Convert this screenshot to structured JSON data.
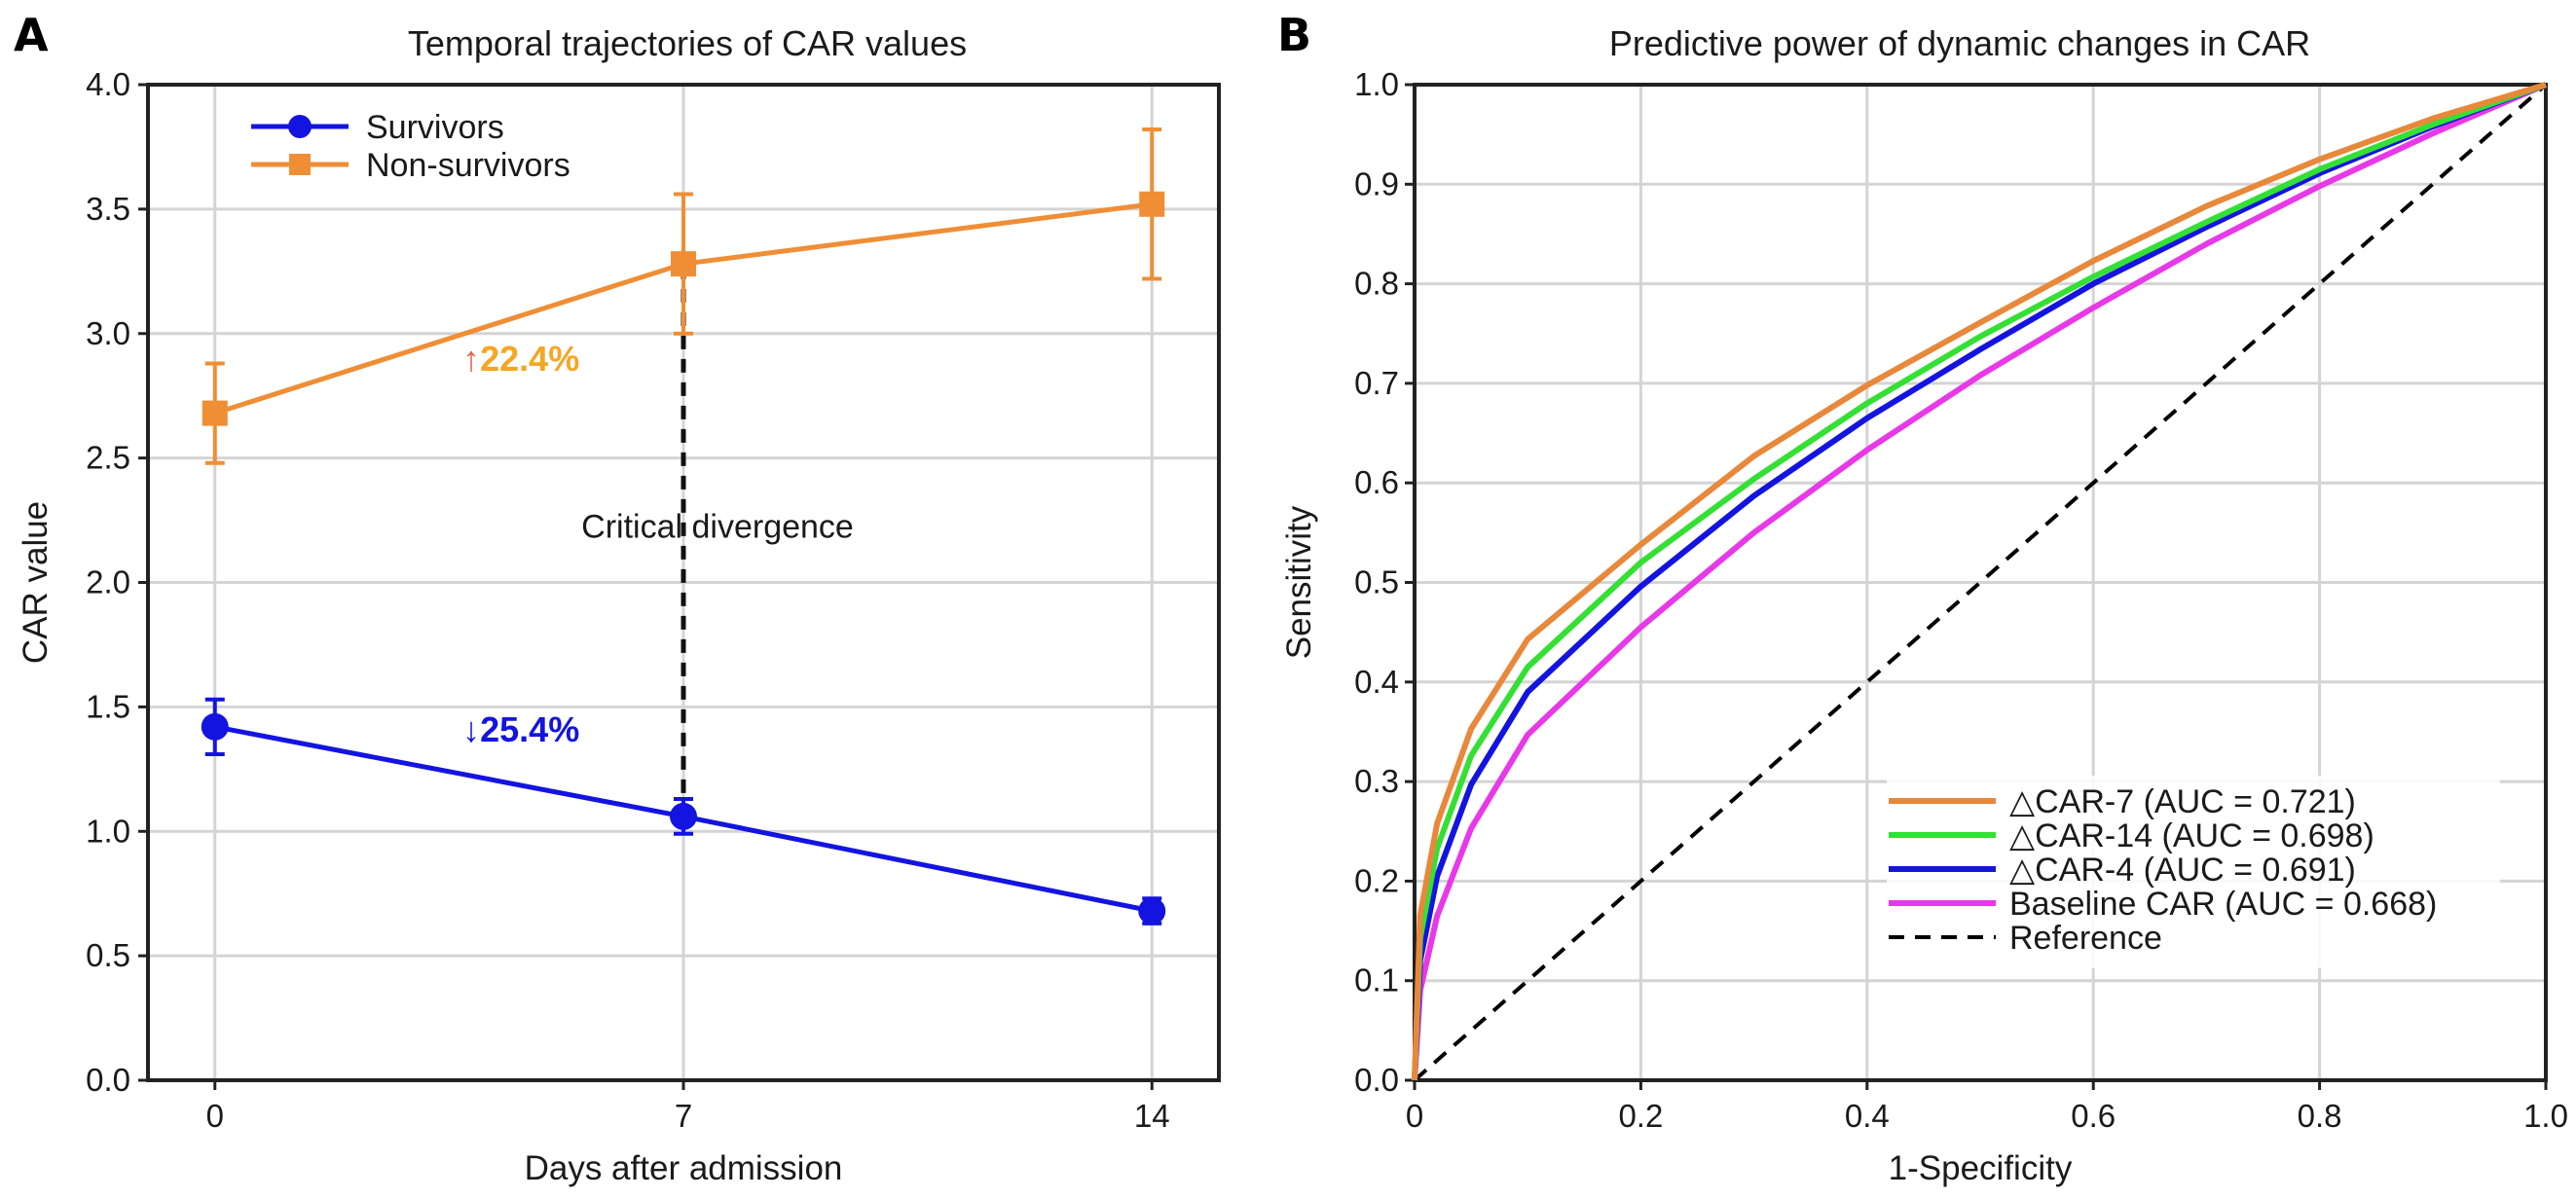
{
  "chart_data": [
    {
      "panel": "A",
      "type": "line",
      "title": "Temporal trajectories of CAR values",
      "xlabel": "Days after admission",
      "ylabel": "CAR value",
      "x": [
        0,
        7,
        14
      ],
      "xticks": [
        "0",
        "7",
        "14"
      ],
      "xlim": [
        -1,
        15
      ],
      "ylim": [
        0,
        4
      ],
      "yticks": [
        "0.0",
        "0.5",
        "1.0",
        "1.5",
        "2.0",
        "2.5",
        "3.0",
        "3.5",
        "4.0"
      ],
      "grid": true,
      "legend_position": "top-left",
      "series": [
        {
          "name": "Survivors",
          "color": "#1414e0",
          "marker": "circle",
          "values": [
            1.42,
            1.06,
            0.68
          ],
          "error": [
            0.11,
            0.07,
            0.05
          ]
        },
        {
          "name": "Non-survivors",
          "color": "#ef8e35",
          "marker": "square",
          "values": [
            2.68,
            3.28,
            3.52
          ],
          "error": [
            0.2,
            0.28,
            0.3
          ]
        }
      ],
      "annotations": [
        {
          "text": "Critical divergence",
          "x": 7,
          "y": 2.18
        },
        {
          "arrow": "↑",
          "text": "22.4%",
          "x": 3.7,
          "y": 2.85,
          "arrow_color": "#e8624d",
          "color": "#f5a623"
        },
        {
          "arrow": "↓",
          "text": "25.4%",
          "x": 3.7,
          "y": 1.36,
          "arrow_color": "#1414e0",
          "color": "#1414e0"
        }
      ],
      "divergence_line": {
        "x": 7,
        "y_from": 1.06,
        "y_to": 3.28
      }
    },
    {
      "panel": "B",
      "type": "line",
      "title": "Predictive power of dynamic changes in CAR",
      "xlabel": "1-Specificity",
      "ylabel": "Sensitivity",
      "xlim": [
        0,
        1
      ],
      "ylim": [
        0,
        1
      ],
      "xticks": [
        "0",
        "0.2",
        "0.4",
        "0.6",
        "0.8",
        "1.0"
      ],
      "yticks": [
        "0.0",
        "0.1",
        "0.2",
        "0.3",
        "0.4",
        "0.5",
        "0.6",
        "0.7",
        "0.8",
        "0.9",
        "1.0"
      ],
      "grid": true,
      "legend_position": "bottom-right",
      "x": [
        0,
        0.005,
        0.02,
        0.05,
        0.1,
        0.2,
        0.3,
        0.4,
        0.5,
        0.6,
        0.7,
        0.8,
        0.9,
        1.0
      ],
      "series": [
        {
          "name": "△CAR-7 (AUC = 0.721)",
          "color": "#e8883a",
          "values": [
            0,
            0.166,
            0.258,
            0.353,
            0.443,
            0.538,
            0.627,
            0.698,
            0.761,
            0.823,
            0.878,
            0.925,
            0.966,
            1.0
          ]
        },
        {
          "name": "△CAR-14 (AUC = 0.698)",
          "color": "#33e033",
          "values": [
            0,
            0.143,
            0.233,
            0.326,
            0.415,
            0.52,
            0.604,
            0.68,
            0.747,
            0.807,
            0.862,
            0.915,
            0.96,
            1.0
          ]
        },
        {
          "name": "△CAR-4 (AUC = 0.691)",
          "color": "#1414e0",
          "values": [
            0,
            0.12,
            0.205,
            0.297,
            0.39,
            0.496,
            0.587,
            0.665,
            0.734,
            0.8,
            0.857,
            0.911,
            0.958,
            1.0
          ]
        },
        {
          "name": "Baseline CAR (AUC = 0.668)",
          "color": "#e838e8",
          "values": [
            0,
            0.09,
            0.165,
            0.253,
            0.347,
            0.455,
            0.55,
            0.633,
            0.708,
            0.776,
            0.84,
            0.898,
            0.951,
            1.0
          ]
        },
        {
          "name": "Reference",
          "color": "#000000",
          "dash": true,
          "values": [
            0,
            0.005,
            0.02,
            0.05,
            0.1,
            0.2,
            0.3,
            0.4,
            0.5,
            0.6,
            0.7,
            0.8,
            0.9,
            1.0
          ]
        }
      ]
    }
  ]
}
